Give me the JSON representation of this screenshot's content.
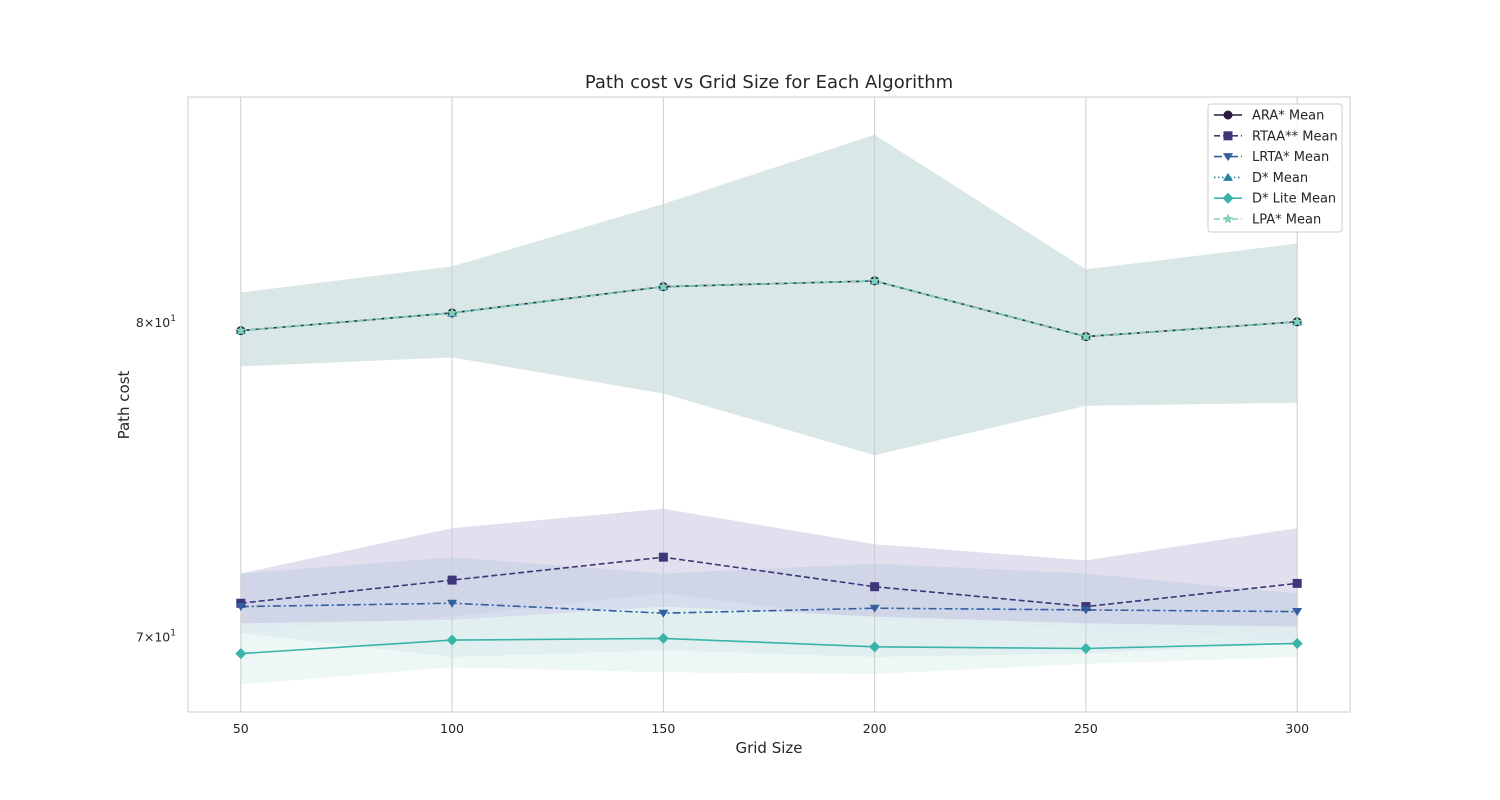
{
  "chart_data": {
    "type": "line",
    "title": "Path cost vs Grid Size for Each Algorithm",
    "xlabel": "Grid Size",
    "ylabel": "Path cost",
    "x": [
      50,
      100,
      150,
      200,
      250,
      300
    ],
    "x_ticks": [
      "50",
      "100",
      "150",
      "200",
      "250",
      "300"
    ],
    "y_scale": "log",
    "y_ticks": [
      70,
      80
    ],
    "y_tick_labels": [
      {
        "value": 70,
        "mantissa": "7",
        "exp": "1"
      },
      {
        "value": 80,
        "mantissa": "8",
        "exp": "1"
      }
    ],
    "ylim": [
      67.8,
      88.0
    ],
    "xlim": [
      37.5,
      312.5
    ],
    "grid": "vertical",
    "legend_position": "top-right",
    "series": [
      {
        "name": "ARA* Mean",
        "color": "#2b1b3f",
        "dash": "solid",
        "marker": "circle",
        "values": [
          79.7,
          80.3,
          81.2,
          81.4,
          79.5,
          80.0
        ]
      },
      {
        "name": "RTAA** Mean",
        "color": "#3c3779",
        "dash": "dashed",
        "marker": "square",
        "values": [
          71.0,
          71.7,
          72.4,
          71.5,
          70.9,
          71.6
        ],
        "band_lower": [
          70.1,
          70.6,
          71.3,
          70.5,
          70.2,
          69.9
        ],
        "band_upper": [
          71.9,
          73.3,
          73.9,
          72.8,
          72.3,
          73.3
        ],
        "band_color": "#d8d6e8"
      },
      {
        "name": "LRTA* Mean",
        "color": "#3060a0",
        "dash": "dashdot",
        "marker": "triangle-down",
        "values": [
          70.9,
          71.0,
          70.7,
          70.85,
          70.8,
          70.75
        ],
        "band_lower": [
          70.1,
          69.4,
          69.6,
          69.4,
          69.5,
          69.8
        ],
        "band_upper": [
          71.9,
          72.4,
          71.9,
          72.2,
          71.9,
          71.3
        ],
        "band_color": "#c9d1e6"
      },
      {
        "name": "D* Mean",
        "color": "#2c80a0",
        "dash": "dotted",
        "marker": "triangle-up",
        "values": [
          79.7,
          80.3,
          81.2,
          81.4,
          79.5,
          80.0
        ],
        "band_lower": [
          78.5,
          78.8,
          77.6,
          75.6,
          77.2,
          77.3
        ],
        "band_upper": [
          81.0,
          81.9,
          84.1,
          86.6,
          81.8,
          82.7
        ],
        "band_color": "#cddfdf"
      },
      {
        "name": "D* Lite Mean",
        "color": "#3ab4a8",
        "dash": "solid",
        "marker": "diamond",
        "values": [
          69.5,
          69.9,
          69.95,
          69.7,
          69.65,
          69.8
        ],
        "band_lower": [
          68.6,
          69.1,
          68.95,
          68.9,
          69.2,
          69.4
        ],
        "band_upper": [
          70.4,
          70.5,
          70.9,
          70.6,
          70.4,
          70.3
        ],
        "band_color": "#e6f4f3"
      },
      {
        "name": "LPA* Mean",
        "color": "#7fd3b3",
        "dash": "dashed",
        "marker": "star",
        "values": [
          79.7,
          80.3,
          81.2,
          81.4,
          79.5,
          80.0
        ]
      }
    ]
  }
}
